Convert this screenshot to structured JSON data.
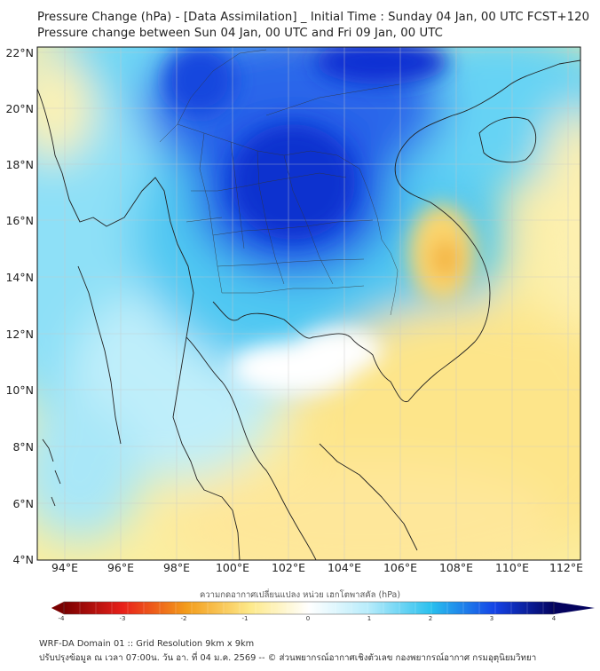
{
  "header": {
    "title_line1": "Pressure Change (hPa) - [Data Assimilation] _ Initial Time : Sunday 04 Jan, 00 UTC FCST+120",
    "title_line2": "Pressure change between Sun 04 Jan, 00 UTC and Fri 09 Jan, 00 UTC"
  },
  "map": {
    "lat_labels": [
      "22°N",
      "20°N",
      "18°N",
      "16°N",
      "14°N",
      "12°N",
      "10°N",
      "8°N",
      "6°N",
      "4°N"
    ],
    "lon_labels": [
      "94°E",
      "96°E",
      "98°E",
      "100°E",
      "102°E",
      "104°E",
      "106°E",
      "108°E",
      "110°E",
      "112°E"
    ]
  },
  "colorbar": {
    "caption": "ความกดอากาศเปลี่ยนแปลง หน่วย เฮกโตพาสคัล (hPa)",
    "ticks": [
      "-4",
      "-3",
      "-2",
      "-1",
      "0",
      "1",
      "2",
      "3",
      "4"
    ],
    "colors": {
      "min": "#7a0000",
      "neg_strong": "#e8201a",
      "neg_mid": "#f39c1a",
      "neg_weak": "#fde98a",
      "zero": "#ffffff",
      "pos_weak": "#b8ecfb",
      "pos_mid": "#29c0ee",
      "pos_strong": "#1442e6",
      "max": "#04035e"
    }
  },
  "footer": {
    "line1": "WRF-DA Domain 01 :: Grid Resolution 9km x 9km",
    "line2": "ปรับปรุงข้อมูล ณ เวลา 07:00น. วัน อา. ที่ 04 ม.ค. 2569 -- © ส่วนพยากรณ์อากาศเชิงตัวเลข กองพยากรณ์อากาศ กรมอุตุนิยมวิทยา"
  }
}
